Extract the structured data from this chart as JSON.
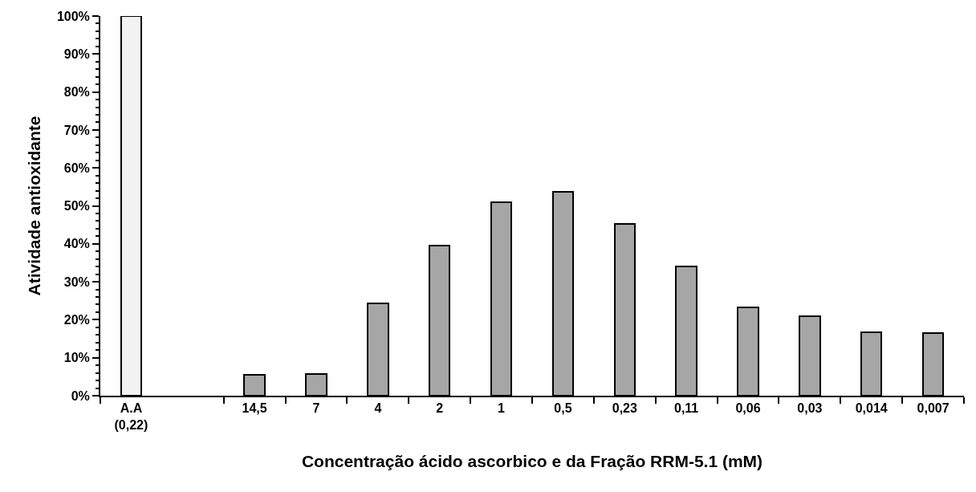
{
  "chart_data": {
    "type": "bar",
    "xlabel": "Concentração ácido ascorbico e da Fração RRM-5.1 (mM)",
    "ylabel": "Atividade antioxidante",
    "categories": [
      "A.A\n(0,22)",
      null,
      "14,5",
      "7",
      "4",
      "2",
      "1",
      "0,5",
      "0,23",
      "0,11",
      "0,06",
      "0,03",
      "0,014",
      "0,007"
    ],
    "values": [
      100,
      null,
      5.6,
      5.8,
      24.3,
      39.5,
      51.0,
      53.8,
      45.2,
      34.1,
      23.3,
      20.9,
      16.6,
      16.5
    ],
    "colors": [
      "#f2f2f2",
      "#a6a6a6",
      "#a6a6a6",
      "#a6a6a6",
      "#a6a6a6",
      "#a6a6a6",
      "#a6a6a6",
      "#a6a6a6",
      "#a6a6a6",
      "#a6a6a6",
      "#a6a6a6",
      "#a6a6a6",
      "#a6a6a6",
      "#a6a6a6"
    ],
    "ylim": [
      0,
      100
    ],
    "yticks": [
      {
        "value": 0,
        "label": "0%"
      },
      {
        "value": 2,
        "label": null
      },
      {
        "value": 4,
        "label": null
      },
      {
        "value": 6,
        "label": null
      },
      {
        "value": 8,
        "label": null
      },
      {
        "value": 10,
        "label": "10%"
      },
      {
        "value": 12,
        "label": null
      },
      {
        "value": 14,
        "label": null
      },
      {
        "value": 16,
        "label": null
      },
      {
        "value": 18,
        "label": null
      },
      {
        "value": 20,
        "label": "20%"
      },
      {
        "value": 22,
        "label": null
      },
      {
        "value": 24,
        "label": null
      },
      {
        "value": 26,
        "label": null
      },
      {
        "value": 28,
        "label": null
      },
      {
        "value": 30,
        "label": "30%"
      },
      {
        "value": 32,
        "label": null
      },
      {
        "value": 34,
        "label": null
      },
      {
        "value": 36,
        "label": null
      },
      {
        "value": 38,
        "label": null
      },
      {
        "value": 40,
        "label": "40%"
      },
      {
        "value": 42,
        "label": null
      },
      {
        "value": 44,
        "label": null
      },
      {
        "value": 46,
        "label": null
      },
      {
        "value": 48,
        "label": null
      },
      {
        "value": 50,
        "label": "50%"
      },
      {
        "value": 52,
        "label": null
      },
      {
        "value": 54,
        "label": null
      },
      {
        "value": 56,
        "label": null
      },
      {
        "value": 58,
        "label": null
      },
      {
        "value": 60,
        "label": "60%"
      },
      {
        "value": 62,
        "label": null
      },
      {
        "value": 64,
        "label": null
      },
      {
        "value": 66,
        "label": null
      },
      {
        "value": 68,
        "label": null
      },
      {
        "value": 70,
        "label": "70%"
      },
      {
        "value": 72,
        "label": null
      },
      {
        "value": 74,
        "label": null
      },
      {
        "value": 76,
        "label": null
      },
      {
        "value": 78,
        "label": null
      },
      {
        "value": 80,
        "label": "80%"
      },
      {
        "value": 82,
        "label": null
      },
      {
        "value": 84,
        "label": null
      },
      {
        "value": 86,
        "label": null
      },
      {
        "value": 88,
        "label": null
      },
      {
        "value": 90,
        "label": "90%"
      },
      {
        "value": 92,
        "label": null
      },
      {
        "value": 94,
        "label": null
      },
      {
        "value": 96,
        "label": null
      },
      {
        "value": 98,
        "label": null
      },
      {
        "value": 100,
        "label": "100%"
      }
    ],
    "orientation": "vertical"
  }
}
